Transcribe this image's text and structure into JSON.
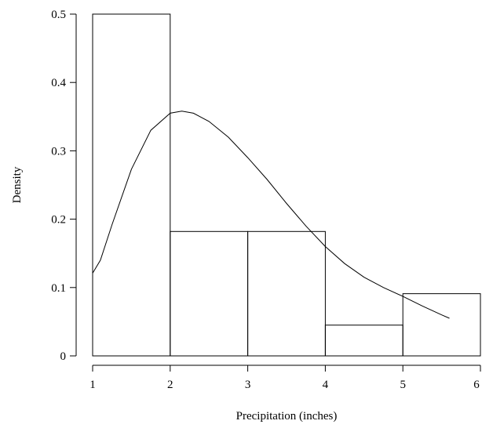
{
  "chart_data": {
    "type": "histogram",
    "title": "",
    "xlabel": "Precipitation (inches)",
    "ylabel": "Density",
    "xlim": [
      1,
      6
    ],
    "ylim": [
      0,
      0.5
    ],
    "x_ticks": [
      "1",
      "2",
      "3",
      "4",
      "5",
      "6"
    ],
    "y_ticks": [
      "0",
      "0.1",
      "0.2",
      "0.3",
      "0.4",
      "0.5"
    ],
    "bins": [
      {
        "x0": 1,
        "x1": 2,
        "density": 0.5
      },
      {
        "x0": 2,
        "x1": 3,
        "density": 0.182
      },
      {
        "x0": 3,
        "x1": 4,
        "density": 0.182
      },
      {
        "x0": 4,
        "x1": 5,
        "density": 0.045
      },
      {
        "x0": 5,
        "x1": 6,
        "density": 0.091
      }
    ],
    "density_curve": {
      "x": [
        1.0,
        1.1,
        1.25,
        1.5,
        1.75,
        2.0,
        2.15,
        2.3,
        2.5,
        2.75,
        3.0,
        3.25,
        3.5,
        3.75,
        4.0,
        4.25,
        4.5,
        4.75,
        5.0,
        5.25,
        5.5,
        5.6
      ],
      "y": [
        0.121,
        0.14,
        0.192,
        0.273,
        0.33,
        0.355,
        0.358,
        0.355,
        0.343,
        0.32,
        0.29,
        0.258,
        0.223,
        0.19,
        0.16,
        0.135,
        0.115,
        0.1,
        0.087,
        0.073,
        0.06,
        0.055
      ]
    },
    "grid": false,
    "legend": "none"
  }
}
